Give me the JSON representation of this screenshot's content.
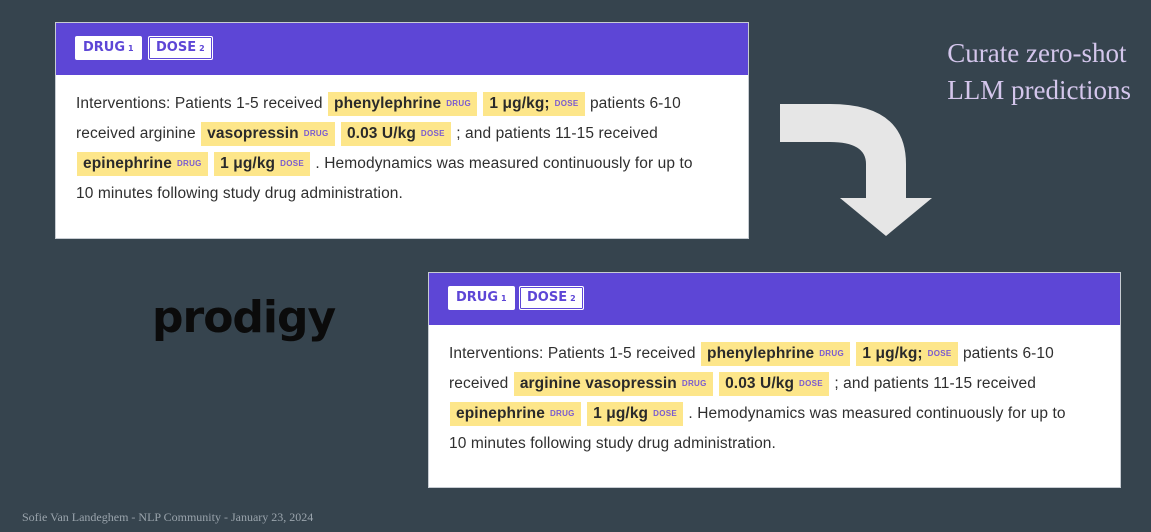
{
  "title": {
    "line1": "Curate zero-shot",
    "line2": "LLM predictions"
  },
  "logo": "prodigy",
  "footer": "Sofie Van Landeghem - NLP Community -  January 23, 2024",
  "labels": {
    "drug": "DRUG",
    "drug_num": "1",
    "dose": "DOSE",
    "dose_num": "2"
  },
  "tags": {
    "drug": "DRUG",
    "dose": "DOSE"
  },
  "colors": {
    "header": "#5d46d6",
    "entity": "#fde68a",
    "background": "#36444e"
  },
  "top_panel": {
    "line1": {
      "t1": "Interventions: Patients 1-5 received",
      "e1": "phenylephrine",
      "e2": "1 μg/kg;",
      "t2": "patients 6-10"
    },
    "line2": {
      "t1": "received arginine",
      "e1": "vasopressin",
      "e2": "0.03 U/kg",
      "t2": "; and patients 11-15 received"
    },
    "line3": {
      "e1": "epinephrine",
      "e2": "1 μg/kg",
      "t2": ". Hemodynamics was measured continuously for up to"
    },
    "line4": {
      "t1": "10 minutes following study drug administration."
    }
  },
  "bottom_panel": {
    "line1": {
      "t1": "Interventions: Patients 1-5 received",
      "e1": "phenylephrine",
      "e2": "1 μg/kg;",
      "t2": "patients 6-10"
    },
    "line2": {
      "t1": "received",
      "e1": "arginine vasopressin",
      "e2": "0.03 U/kg",
      "t2": "; and patients 11-15 received"
    },
    "line3": {
      "e1": "epinephrine",
      "e2": "1 μg/kg",
      "t2": ". Hemodynamics was measured continuously for up to"
    },
    "line4": {
      "t1": "10 minutes following study drug administration."
    }
  }
}
